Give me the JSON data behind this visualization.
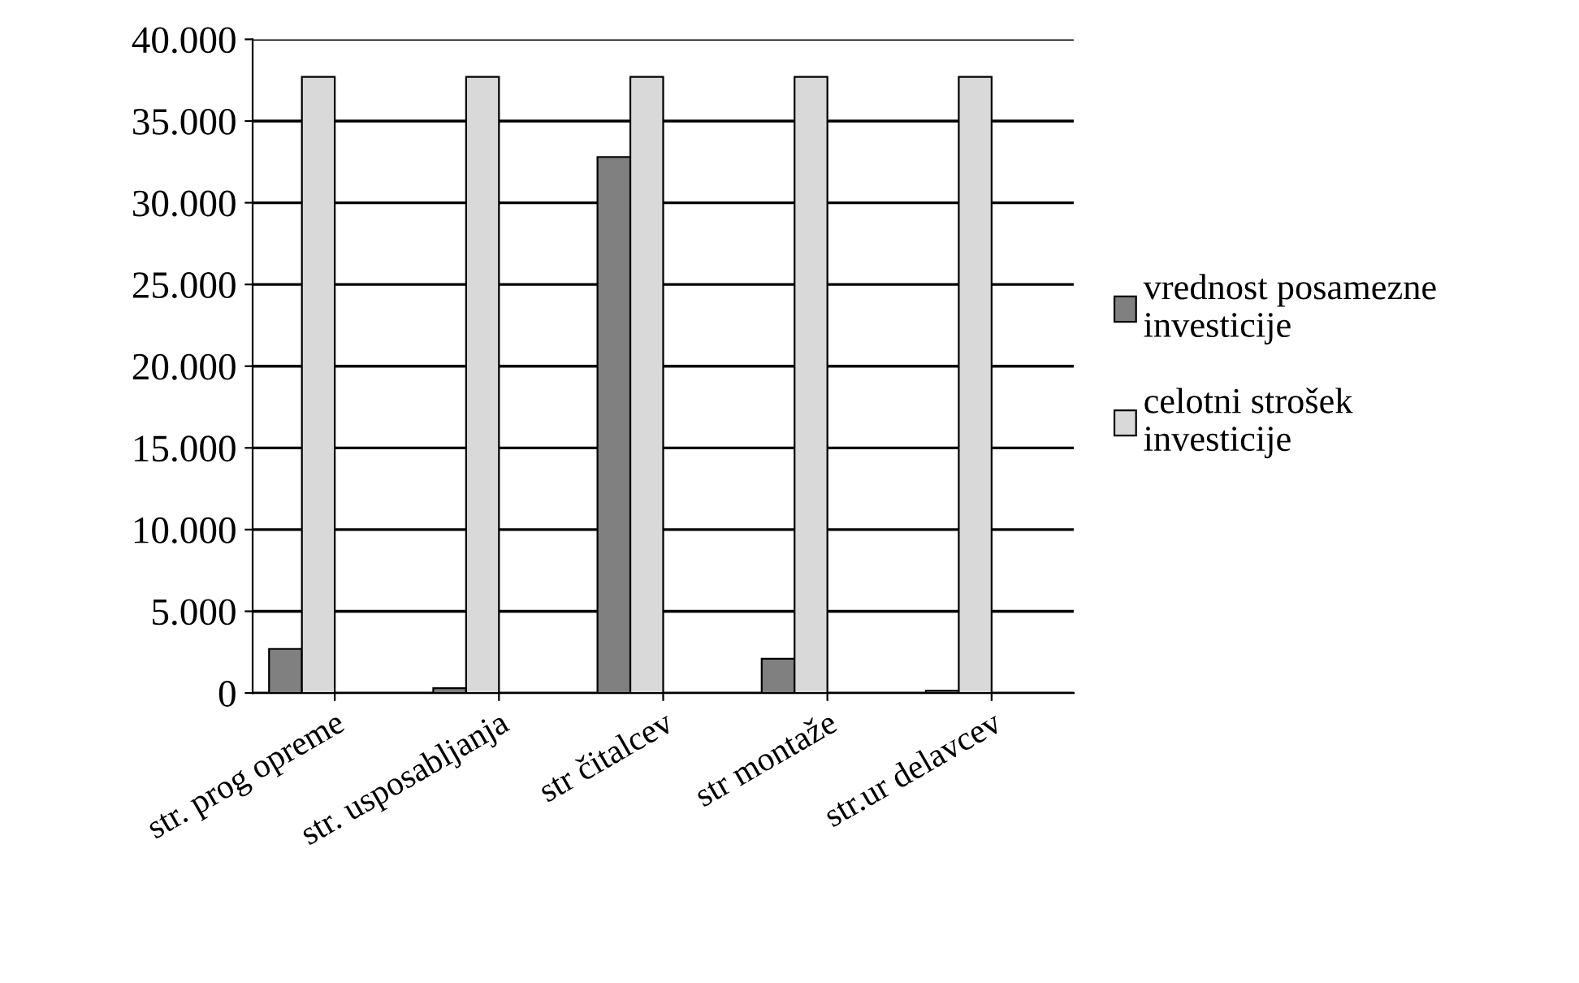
{
  "chart_data": {
    "type": "bar",
    "categories": [
      "str. prog opreme",
      "str. usposabljanja",
      "str čitalcev",
      "str montaže",
      "str.ur delavcev"
    ],
    "series": [
      {
        "name": "vrednost posamezne investicije",
        "color": "#808080",
        "values": [
          2700,
          300,
          32800,
          2100,
          150
        ]
      },
      {
        "name": "celotni strošek investicije",
        "color": "#d9d9d9",
        "values": [
          37700,
          37700,
          37700,
          37700,
          37700
        ]
      }
    ],
    "ylim": [
      0,
      40000
    ],
    "yticks": [
      0,
      {
        "value": 5000,
        "label": "5.000"
      },
      {
        "value": 10000,
        "label": "10.000"
      },
      {
        "value": 15000,
        "label": "15.000"
      },
      {
        "value": 20000,
        "label": "20.000"
      },
      {
        "value": 25000,
        "label": "25.000"
      },
      {
        "value": 30000,
        "label": "30.000"
      },
      {
        "value": 35000,
        "label": "35.000"
      },
      {
        "value": 40000,
        "label": "40.000"
      }
    ],
    "grid": "y",
    "legend": "right"
  }
}
